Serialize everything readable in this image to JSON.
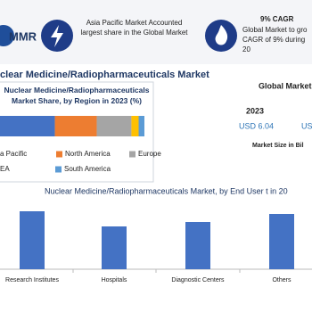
{
  "logo": "MMR",
  "highlight_1": "Asia Pacific Market Accounted largest share in the Global Market",
  "highlight_2": {
    "title": "9% CAGR",
    "text": "Global Market to gro CAGR of 9% during 20"
  },
  "heading": "clear Medicine/Radiopharmaceuticals  Market",
  "market_size": {
    "title": "Global Market",
    "year": "2023",
    "value": "USD 6.04",
    "value_2": "US",
    "caption": "Market Size in Bil"
  },
  "chart_data": [
    {
      "type": "stacked-hbar",
      "title": "Nuclear Medicine/Radiopharmaceuticals Market Share, by Region in 2023 (%)",
      "xlim": [
        0,
        100
      ],
      "series": [
        {
          "name": "a Pacific",
          "color": "#4472c4",
          "values": [
            38
          ]
        },
        {
          "name": "North America",
          "color": "#ed7d31",
          "values": [
            29
          ]
        },
        {
          "name": "Europe",
          "color": "#a5a5a5",
          "values": [
            24
          ]
        },
        {
          "name": "EA",
          "color": "#ffc000",
          "values": [
            5
          ]
        },
        {
          "name": "South America",
          "color": "#5b9bd5",
          "values": [
            4
          ]
        }
      ]
    },
    {
      "type": "bar",
      "title": "Nuclear Medicine/Radiopharmaceuticals Market, by End User t in 20",
      "categories": [
        "Research Institutes",
        "Hospitals",
        "Diagnostic Centers",
        "Others"
      ],
      "values": [
        65,
        48,
        53,
        62
      ],
      "color": "#4472c4",
      "ylim": [
        0,
        70
      ]
    }
  ]
}
